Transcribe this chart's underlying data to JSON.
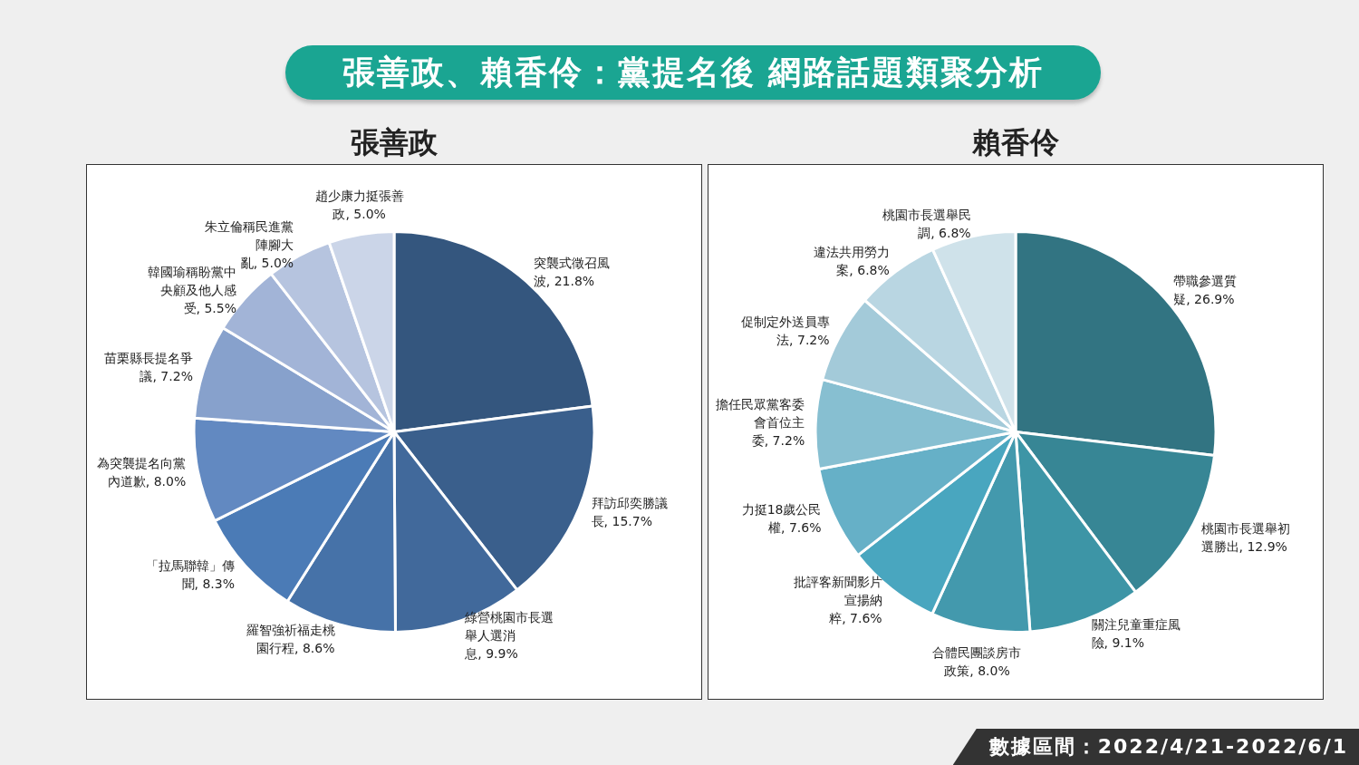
{
  "chart_data": [
    {
      "type": "pie",
      "title": "張善政",
      "annotations": [
        "張善政、賴香伶：黨提名後 網路話題類聚分析",
        "數據區間：2022/4/21-2022/6/1"
      ],
      "legend": false,
      "categories": [
        "突襲式徵召風波",
        "拜訪邱奕勝議長",
        "綠營桃園市長選舉人選消息",
        "羅智強祈福走桃園行程",
        "「拉馬聯韓」傳聞",
        "為突襲提名向黨內道歉",
        "苗栗縣長提名爭議",
        "韓國瑜稱盼黨中央顧及他人感受",
        "朱立倫稱民進黨陣腳大亂",
        "趙少康力挺張善政"
      ],
      "value_labels": [
        "21.8%",
        "15.7%",
        "9.9%",
        "8.6%",
        "8.3%",
        "8.0%",
        "7.2%",
        "5.5%",
        "5.0%",
        "5.0%"
      ],
      "values": [
        21.8,
        15.7,
        9.9,
        8.6,
        8.3,
        8.0,
        7.2,
        5.5,
        5.0,
        5.0
      ],
      "colors": [
        "#34567e",
        "#3a5f8c",
        "#41699b",
        "#4672a8",
        "#4b7bb6",
        "#6289c1",
        "#87a1cc",
        "#a2b4d7",
        "#b6c4df",
        "#cbd5e8"
      ]
    },
    {
      "type": "pie",
      "title": "賴香伶",
      "legend": false,
      "categories": [
        "帶職參選質疑",
        "桃園市長選舉初選勝出",
        "關注兒童重症風險",
        "合體民團談房市政策",
        "批評客新聞影片宣揚納粹",
        "力挺18歲公民權",
        "擔任民眾黨客委會首位主委",
        "促制定外送員專法",
        "違法共用勞力案",
        "桃園市長選舉民調"
      ],
      "value_labels": [
        "26.9%",
        "12.9%",
        "9.1%",
        "8.0%",
        "7.6%",
        "7.6%",
        "7.2%",
        "7.2%",
        "6.8%",
        "6.8%"
      ],
      "values": [
        26.9,
        12.9,
        9.1,
        8.0,
        7.6,
        7.6,
        7.2,
        7.2,
        6.8,
        6.8
      ],
      "colors": [
        "#327482",
        "#378695",
        "#3d95a6",
        "#4399ad",
        "#49a6bf",
        "#66b0c7",
        "#87bfd1",
        "#a3cad9",
        "#b9d6e2",
        "#cfe2ea"
      ]
    }
  ]
}
